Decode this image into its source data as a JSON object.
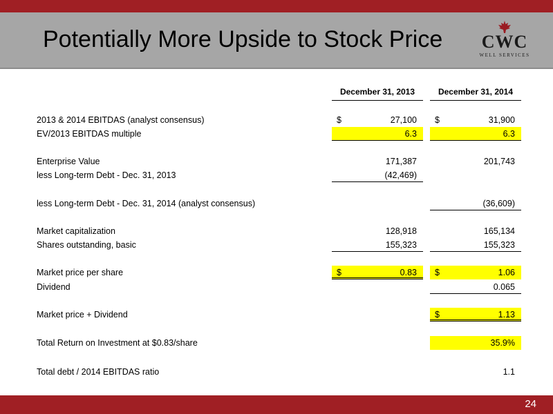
{
  "slide": {
    "title": "Potentially More Upside to Stock Price",
    "page_number": "24",
    "logo": {
      "wordmark": "CWC",
      "subtitle": "WELL SERVICES"
    }
  },
  "table": {
    "columns": [
      "December 31, 2013",
      "December 31, 2014"
    ],
    "rows": [
      {
        "label": "2013 & 2014 EBITDAS (analyst consensus)",
        "c1_sym": "$",
        "c1": "27,100",
        "c2_sym": "$",
        "c2": "31,900"
      },
      {
        "label": "EV/2013 EBITDAS multiple",
        "c1": "6.3",
        "c2": "6.3"
      },
      {
        "label": "Enterprise Value",
        "c1": "171,387",
        "c2": "201,743"
      },
      {
        "label": "less Long-term Debt - Dec. 31, 2013",
        "c1": "(42,469)"
      },
      {
        "label": "less Long-term Debt - Dec. 31, 2014 (analyst consensus)",
        "c2": "(36,609)"
      },
      {
        "label": "Market capitalization",
        "c1": "128,918",
        "c2": "165,134"
      },
      {
        "label": "Shares outstanding, basic",
        "c1": "155,323",
        "c2": "155,323"
      },
      {
        "label": "Market price per share",
        "c1_sym": "$",
        "c1": "0.83",
        "c2_sym": "$",
        "c2": "1.06"
      },
      {
        "label": "Dividend",
        "c2": "0.065"
      },
      {
        "label": "Market price + Dividend",
        "c2_sym": "$",
        "c2": "1.13"
      },
      {
        "label": "Total Return on Investment at $0.83/share",
        "c2": "35.9%"
      },
      {
        "label": "Total debt / 2014 EBITDAS ratio",
        "c2": "1.1"
      }
    ]
  },
  "colors": {
    "accent": "#a01f24",
    "band": "#a6a6a6",
    "highlight": "#ffff00"
  }
}
